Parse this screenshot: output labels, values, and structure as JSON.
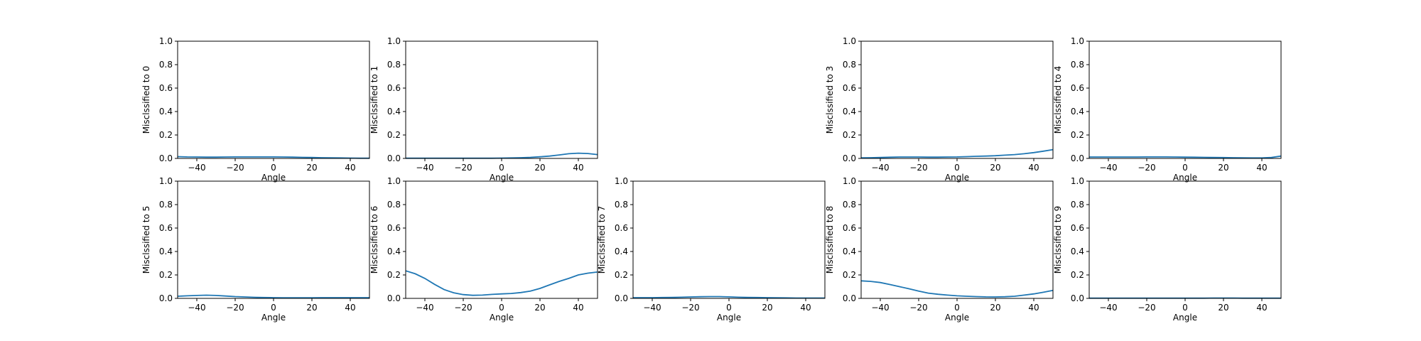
{
  "chart_data": [
    {
      "type": "line",
      "xlabel": "Angle",
      "ylabel": "Misclssified to 0",
      "xlim": [
        -50,
        50
      ],
      "ylim": [
        0,
        1
      ],
      "xticks": [
        -40,
        -20,
        0,
        20,
        40
      ],
      "yticks": [
        0.0,
        0.2,
        0.4,
        0.6,
        0.8,
        1.0
      ],
      "grid": false,
      "series": [
        {
          "color": "#1f77b4",
          "x": [
            -50,
            -45,
            -40,
            -35,
            -30,
            -25,
            -20,
            -15,
            -10,
            -5,
            0,
            5,
            10,
            15,
            20,
            25,
            30,
            35,
            40,
            45,
            50
          ],
          "y": [
            0.015,
            0.013,
            0.012,
            0.011,
            0.011,
            0.012,
            0.013,
            0.013,
            0.013,
            0.013,
            0.013,
            0.012,
            0.011,
            0.009,
            0.008,
            0.006,
            0.005,
            0.004,
            0.003,
            0.002,
            0.002
          ]
        }
      ]
    },
    {
      "type": "line",
      "xlabel": "Angle",
      "ylabel": "Misclssified to 1",
      "xlim": [
        -50,
        50
      ],
      "ylim": [
        0,
        1
      ],
      "xticks": [
        -40,
        -20,
        0,
        20,
        40
      ],
      "yticks": [
        0.0,
        0.2,
        0.4,
        0.6,
        0.8,
        1.0
      ],
      "grid": false,
      "series": [
        {
          "color": "#1f77b4",
          "x": [
            -50,
            -45,
            -40,
            -35,
            -30,
            -25,
            -20,
            -15,
            -10,
            -5,
            0,
            5,
            10,
            15,
            20,
            25,
            30,
            35,
            40,
            45,
            50
          ],
          "y": [
            0.002,
            0.002,
            0.002,
            0.002,
            0.002,
            0.002,
            0.002,
            0.002,
            0.002,
            0.002,
            0.003,
            0.004,
            0.006,
            0.009,
            0.014,
            0.02,
            0.03,
            0.04,
            0.045,
            0.042,
            0.033
          ]
        }
      ]
    },
    {
      "type": "line",
      "xlabel": "Angle",
      "ylabel": "Misclssified to 3",
      "xlim": [
        -50,
        50
      ],
      "ylim": [
        0,
        1
      ],
      "xticks": [
        -40,
        -20,
        0,
        20,
        40
      ],
      "yticks": [
        0.0,
        0.2,
        0.4,
        0.6,
        0.8,
        1.0
      ],
      "grid": false,
      "series": [
        {
          "color": "#1f77b4",
          "x": [
            -50,
            -45,
            -40,
            -35,
            -30,
            -25,
            -20,
            -15,
            -10,
            -5,
            0,
            5,
            10,
            15,
            20,
            25,
            30,
            35,
            40,
            45,
            50
          ],
          "y": [
            0.005,
            0.006,
            0.008,
            0.01,
            0.012,
            0.012,
            0.012,
            0.011,
            0.011,
            0.012,
            0.013,
            0.015,
            0.018,
            0.02,
            0.023,
            0.028,
            0.033,
            0.04,
            0.05,
            0.062,
            0.075
          ]
        }
      ]
    },
    {
      "type": "line",
      "xlabel": "Angle",
      "ylabel": "Misclssified to 4",
      "xlim": [
        -50,
        50
      ],
      "ylim": [
        0,
        1
      ],
      "xticks": [
        -40,
        -20,
        0,
        20,
        40
      ],
      "yticks": [
        0.0,
        0.2,
        0.4,
        0.6,
        0.8,
        1.0
      ],
      "grid": false,
      "series": [
        {
          "color": "#1f77b4",
          "x": [
            -50,
            -45,
            -40,
            -35,
            -30,
            -25,
            -20,
            -15,
            -10,
            -5,
            0,
            5,
            10,
            15,
            20,
            25,
            30,
            35,
            40,
            45,
            50
          ],
          "y": [
            0.012,
            0.012,
            0.012,
            0.012,
            0.012,
            0.012,
            0.013,
            0.013,
            0.013,
            0.012,
            0.011,
            0.01,
            0.009,
            0.008,
            0.007,
            0.006,
            0.005,
            0.004,
            0.004,
            0.008,
            0.02
          ]
        }
      ]
    },
    {
      "type": "line",
      "xlabel": "Angle",
      "ylabel": "Misclssified to 5",
      "xlim": [
        -50,
        50
      ],
      "ylim": [
        0,
        1
      ],
      "xticks": [
        -40,
        -20,
        0,
        20,
        40
      ],
      "yticks": [
        0.0,
        0.2,
        0.4,
        0.6,
        0.8,
        1.0
      ],
      "grid": false,
      "series": [
        {
          "color": "#1f77b4",
          "x": [
            -50,
            -45,
            -40,
            -35,
            -30,
            -25,
            -20,
            -15,
            -10,
            -5,
            0,
            5,
            10,
            15,
            20,
            25,
            30,
            35,
            40,
            45,
            50
          ],
          "y": [
            0.018,
            0.022,
            0.025,
            0.027,
            0.025,
            0.02,
            0.015,
            0.012,
            0.009,
            0.007,
            0.006,
            0.005,
            0.005,
            0.005,
            0.005,
            0.006,
            0.006,
            0.006,
            0.006,
            0.006,
            0.006
          ]
        }
      ]
    },
    {
      "type": "line",
      "xlabel": "Angle",
      "ylabel": "Misclssified to 6",
      "xlim": [
        -50,
        50
      ],
      "ylim": [
        0,
        1
      ],
      "xticks": [
        -40,
        -20,
        0,
        20,
        40
      ],
      "yticks": [
        0.0,
        0.2,
        0.4,
        0.6,
        0.8,
        1.0
      ],
      "grid": false,
      "series": [
        {
          "color": "#1f77b4",
          "x": [
            -50,
            -45,
            -40,
            -35,
            -30,
            -25,
            -20,
            -15,
            -10,
            -5,
            0,
            5,
            10,
            15,
            20,
            25,
            30,
            35,
            40,
            45,
            50
          ],
          "y": [
            0.235,
            0.21,
            0.17,
            0.12,
            0.075,
            0.048,
            0.032,
            0.026,
            0.028,
            0.034,
            0.038,
            0.042,
            0.05,
            0.062,
            0.085,
            0.115,
            0.145,
            0.17,
            0.2,
            0.215,
            0.225
          ]
        }
      ]
    },
    {
      "type": "line",
      "xlabel": "Angle",
      "ylabel": "Misclssified to 7",
      "xlim": [
        -50,
        50
      ],
      "ylim": [
        0,
        1
      ],
      "xticks": [
        -40,
        -20,
        0,
        20,
        40
      ],
      "yticks": [
        0.0,
        0.2,
        0.4,
        0.6,
        0.8,
        1.0
      ],
      "grid": false,
      "series": [
        {
          "color": "#1f77b4",
          "x": [
            -50,
            -45,
            -40,
            -35,
            -30,
            -25,
            -20,
            -15,
            -10,
            -5,
            0,
            5,
            10,
            15,
            20,
            25,
            30,
            35,
            40,
            45,
            50
          ],
          "y": [
            0.006,
            0.006,
            0.006,
            0.007,
            0.008,
            0.01,
            0.012,
            0.014,
            0.015,
            0.015,
            0.013,
            0.01,
            0.008,
            0.007,
            0.006,
            0.005,
            0.004,
            0.003,
            0.003,
            0.003,
            0.003
          ]
        }
      ]
    },
    {
      "type": "line",
      "xlabel": "Angle",
      "ylabel": "Misclssified to 8",
      "xlim": [
        -50,
        50
      ],
      "ylim": [
        0,
        1
      ],
      "xticks": [
        -40,
        -20,
        0,
        20,
        40
      ],
      "yticks": [
        0.0,
        0.2,
        0.4,
        0.6,
        0.8,
        1.0
      ],
      "grid": false,
      "series": [
        {
          "color": "#1f77b4",
          "x": [
            -50,
            -45,
            -40,
            -35,
            -30,
            -25,
            -20,
            -15,
            -10,
            -5,
            0,
            5,
            10,
            15,
            20,
            25,
            30,
            35,
            40,
            45,
            50
          ],
          "y": [
            0.15,
            0.145,
            0.135,
            0.118,
            0.1,
            0.082,
            0.062,
            0.045,
            0.035,
            0.028,
            0.022,
            0.018,
            0.015,
            0.013,
            0.012,
            0.014,
            0.018,
            0.028,
            0.038,
            0.052,
            0.068
          ]
        }
      ]
    },
    {
      "type": "line",
      "xlabel": "Angle",
      "ylabel": "Misclssified to 9",
      "xlim": [
        -50,
        50
      ],
      "ylim": [
        0,
        1
      ],
      "xticks": [
        -40,
        -20,
        0,
        20,
        40
      ],
      "yticks": [
        0.0,
        0.2,
        0.4,
        0.6,
        0.8,
        1.0
      ],
      "grid": false,
      "series": [
        {
          "color": "#1f77b4",
          "x": [
            -50,
            -45,
            -40,
            -35,
            -30,
            -25,
            -20,
            -15,
            -10,
            -5,
            0,
            5,
            10,
            15,
            20,
            25,
            30,
            35,
            40,
            45,
            50
          ],
          "y": [
            0.002,
            0.002,
            0.002,
            0.002,
            0.002,
            0.002,
            0.002,
            0.002,
            0.002,
            0.002,
            0.002,
            0.002,
            0.002,
            0.003,
            0.003,
            0.003,
            0.002,
            0.002,
            0.002,
            0.002,
            0.002
          ]
        }
      ]
    }
  ]
}
